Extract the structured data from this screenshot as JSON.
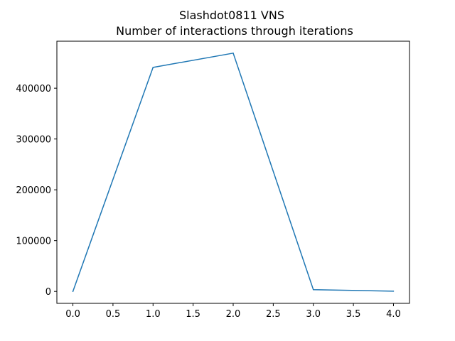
{
  "chart_data": {
    "type": "line",
    "title": "Slashdot0811 VNS",
    "subtitle": "Number of interactions through iterations",
    "xlabel": "",
    "ylabel": "",
    "x": [
      0,
      1,
      2,
      3,
      4
    ],
    "series": [
      {
        "values": [
          0,
          441000,
          469000,
          3500,
          500
        ],
        "color": "#1f77b4"
      }
    ],
    "xlim": [
      -0.2,
      4.2
    ],
    "ylim": [
      -23500,
      492500
    ],
    "xticks": [
      0.0,
      0.5,
      1.0,
      1.5,
      2.0,
      2.5,
      3.0,
      3.5,
      4.0
    ],
    "xtick_labels": [
      "0.0",
      "0.5",
      "1.0",
      "1.5",
      "2.0",
      "2.5",
      "3.0",
      "3.5",
      "4.0"
    ],
    "yticks": [
      0,
      100000,
      200000,
      300000,
      400000
    ],
    "ytick_labels": [
      "0",
      "100000",
      "200000",
      "300000",
      "400000"
    ],
    "grid": false,
    "legend": "none"
  }
}
